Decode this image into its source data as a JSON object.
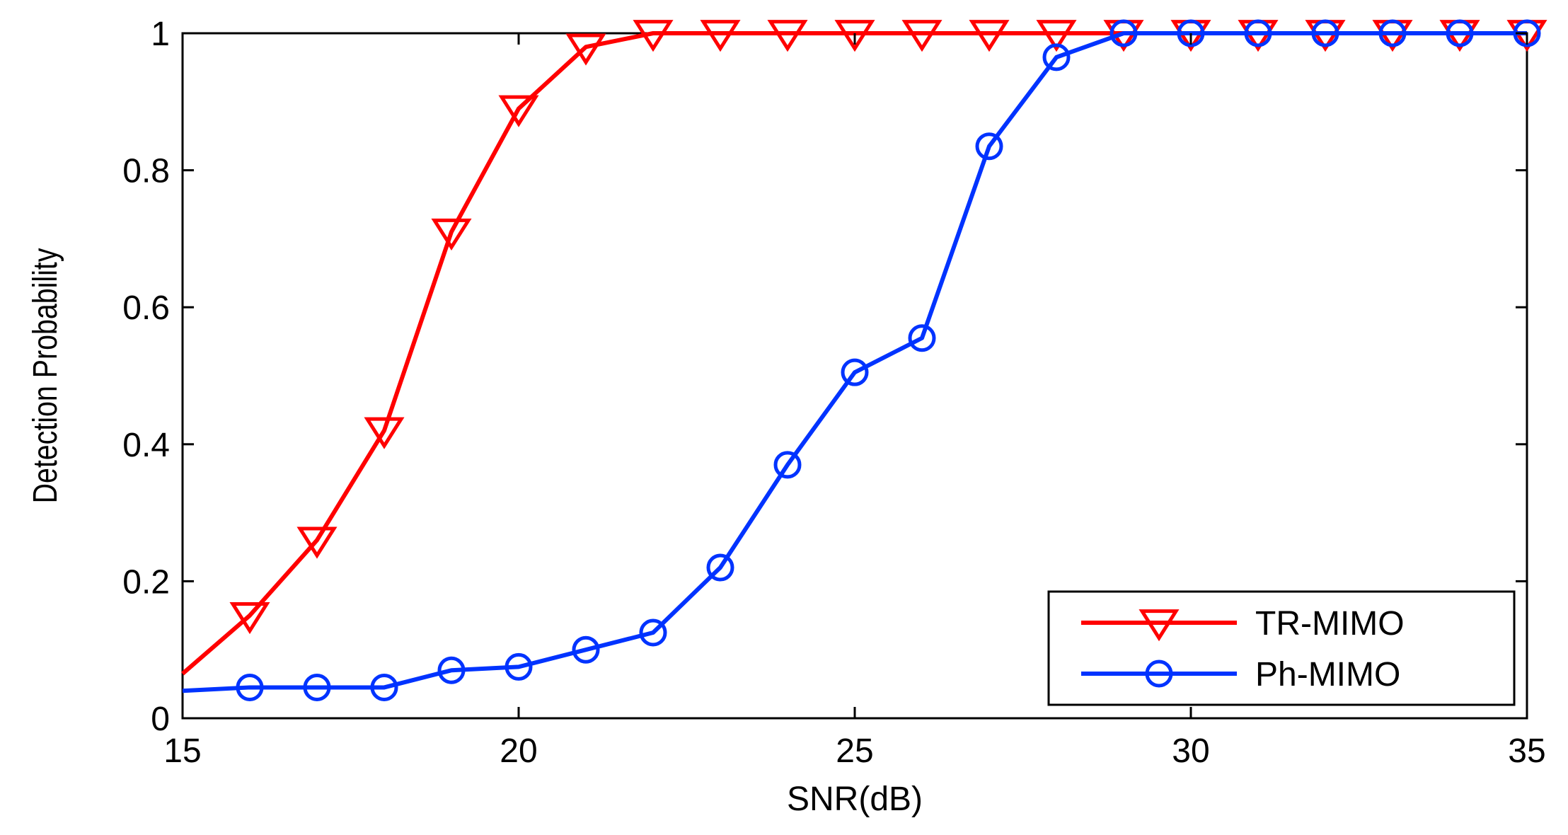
{
  "chart_data": {
    "type": "line",
    "title": "",
    "xlabel": "SNR(dB)",
    "ylabel": "Detection Probability",
    "xlim": [
      15,
      35
    ],
    "ylim": [
      0,
      1
    ],
    "xticks": [
      15,
      20,
      25,
      30,
      35
    ],
    "yticks": [
      0,
      0.2,
      0.4,
      0.6,
      0.8,
      1
    ],
    "ytick_labels": [
      "0",
      "0.2",
      "0.4",
      "0.6",
      "0.8",
      "1"
    ],
    "grid": false,
    "legend_position": "bottom-right",
    "x": [
      15,
      16,
      17,
      18,
      19,
      20,
      21,
      22,
      23,
      24,
      25,
      26,
      27,
      28,
      29,
      30,
      31,
      32,
      33,
      34,
      35
    ],
    "series": [
      {
        "name": "TR-MIMO",
        "color": "#ff0000",
        "marker": "triangle-down",
        "values": [
          0.065,
          0.15,
          0.26,
          0.42,
          0.71,
          0.89,
          0.98,
          1.0,
          1.0,
          1.0,
          1.0,
          1.0,
          1.0,
          1.0,
          1.0,
          1.0,
          1.0,
          1.0,
          1.0,
          1.0,
          1.0
        ]
      },
      {
        "name": "Ph-MIMO",
        "color": "#0033ff",
        "marker": "circle",
        "values": [
          0.04,
          0.045,
          0.045,
          0.045,
          0.07,
          0.075,
          0.1,
          0.125,
          0.22,
          0.37,
          0.505,
          0.555,
          0.835,
          0.965,
          1.0,
          1.0,
          1.0,
          1.0,
          1.0,
          1.0,
          1.0
        ]
      }
    ]
  }
}
